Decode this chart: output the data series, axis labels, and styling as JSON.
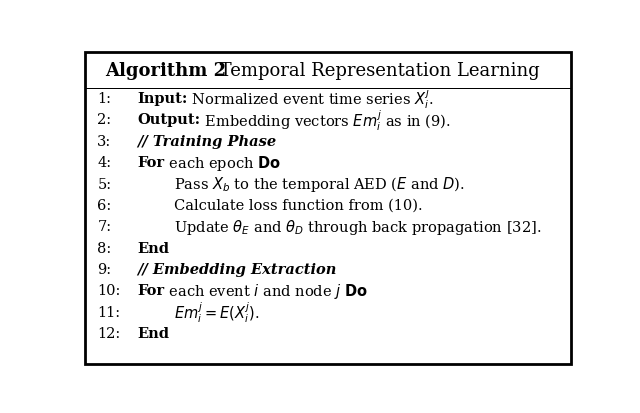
{
  "bg_color": "#ffffff",
  "text_color": "#000000",
  "border_color": "#000000",
  "fig_width": 6.4,
  "fig_height": 4.14,
  "title_bold": "Algorithm 2",
  "title_normal": " Temporal Representation Learning",
  "line_configs": [
    {
      "num": "1:",
      "bold": "Input:",
      "normal": " Normalized event time series $X_i^j$.",
      "indent": 0
    },
    {
      "num": "2:",
      "bold": "Output:",
      "normal": " Embedding vectors $Em_i^j$ as in (9).",
      "indent": 0
    },
    {
      "num": "3:",
      "bold": "// Training Phase",
      "normal": "",
      "indent": 0,
      "italic_bold": true
    },
    {
      "num": "4:",
      "bold": "For",
      "normal": " each epoch $\\mathbf{Do}$",
      "indent": 0
    },
    {
      "num": "5:",
      "bold": "",
      "normal": "Pass $X_b$ to the temporal AED ($E$ and $D$).",
      "indent": 1
    },
    {
      "num": "6:",
      "bold": "",
      "normal": "Calculate loss function from (10).",
      "indent": 1
    },
    {
      "num": "7:",
      "bold": "",
      "normal": "Update $\\theta_E$ and $\\theta_D$ through back propagation [32].",
      "indent": 1
    },
    {
      "num": "8:",
      "bold": "End",
      "normal": "",
      "indent": 0
    },
    {
      "num": "9:",
      "bold": "// Embedding Extraction",
      "normal": "",
      "indent": 0,
      "italic_bold": true
    },
    {
      "num": "10:",
      "bold": "For",
      "normal": " each event $i$ and node $j$ $\\mathbf{Do}$",
      "indent": 0
    },
    {
      "num": "11:",
      "bold": "",
      "normal": "$Em_i^j = E(X_i^j)$.",
      "indent": 1
    },
    {
      "num": "12:",
      "bold": "End",
      "normal": "",
      "indent": 0
    }
  ]
}
